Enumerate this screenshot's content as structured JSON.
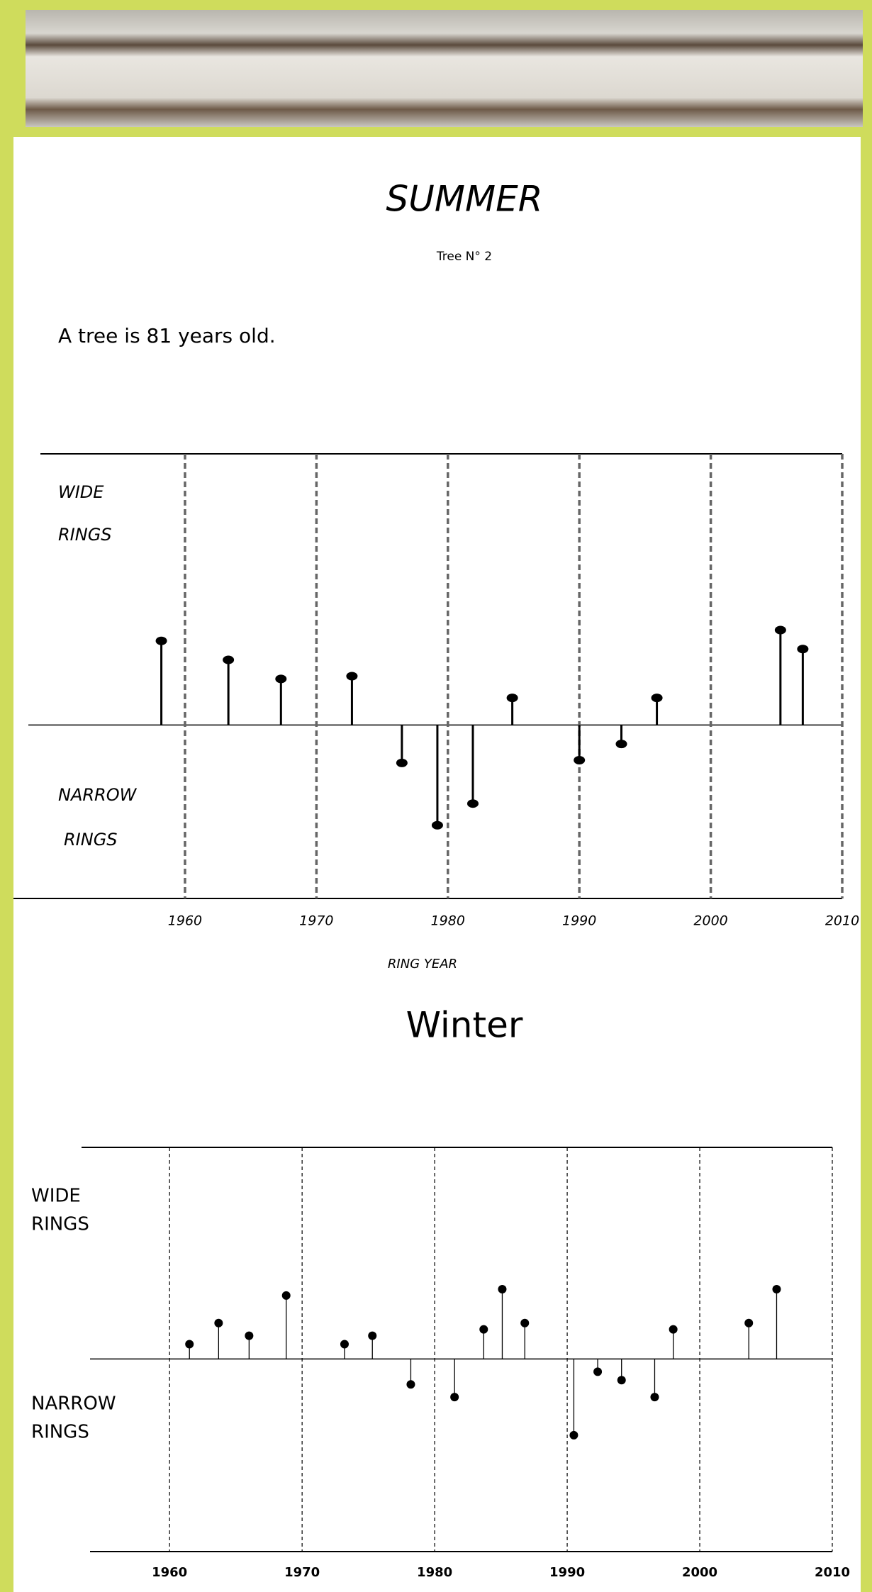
{
  "header": {
    "title": "SUMMER",
    "subtitle": "Tree N° 2",
    "text": "A tree is 81 years old."
  },
  "chart_data": [
    {
      "type": "stem",
      "annotations": [
        "WIDE",
        "RINGS",
        "NARROW",
        "RINGS"
      ],
      "x_label": "RING YEAR",
      "x": [
        1958.2,
        1963.3,
        1967.3,
        1972.7,
        1976.5,
        1979.2,
        1981.9,
        1984.9,
        1990,
        1993.2,
        1995.9,
        2005.3,
        2007
      ],
      "values": [
        31,
        24,
        17,
        18,
        -14,
        -37,
        -29,
        10,
        -13,
        -7,
        10,
        35,
        28
      ],
      "xlim": [
        1949,
        2010
      ],
      "ylim": [
        -64,
        100
      ],
      "xticks": [
        1960,
        1970,
        1980,
        1990,
        2000,
        2010
      ],
      "grid": true,
      "color": "#000000"
    },
    {
      "type": "stem",
      "title": "Winter",
      "annotations": [
        "WIDE",
        "RINGS",
        "NARROW",
        "RINGS"
      ],
      "x": [
        1961.5,
        1963.7,
        1966,
        1968.8,
        1973.2,
        1975.3,
        1978.2,
        1981.5,
        1983.7,
        1985.1,
        1986.8,
        1990.5,
        1992.3,
        1994.1,
        1996.6,
        1998,
        2003.7,
        2005.8
      ],
      "values": [
        7,
        17,
        11,
        30,
        7,
        11,
        -12,
        -18,
        14,
        33,
        17,
        -36,
        -6,
        -10,
        -18,
        14,
        17,
        33
      ],
      "xlim": [
        1954,
        2010
      ],
      "ylim": [
        -91,
        100
      ],
      "xticks": [
        1960,
        1970,
        1980,
        1990,
        2000,
        2010
      ],
      "grid": true,
      "color": "#000000"
    }
  ]
}
